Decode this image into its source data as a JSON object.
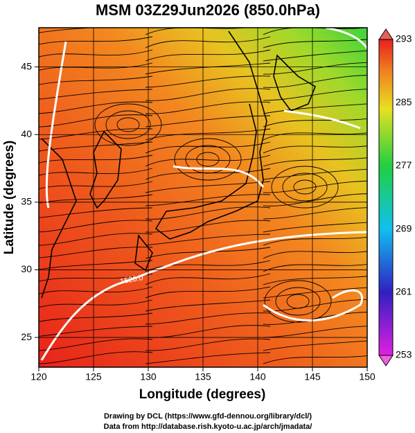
{
  "title": "MSM 03Z29Jun2026 (850.0hPa)",
  "x_axis": {
    "label": "Longitude (degrees)",
    "lim": [
      120,
      150
    ],
    "ticks": [
      120,
      125,
      130,
      135,
      140,
      145,
      150
    ]
  },
  "y_axis": {
    "label": "Latitude  (degrees)",
    "lim": [
      22.8,
      47.9
    ],
    "ticks": [
      25,
      30,
      35,
      40,
      45
    ]
  },
  "colorbar": {
    "lim": [
      253,
      293
    ],
    "ticks": [
      293,
      285,
      277,
      269,
      261,
      253
    ]
  },
  "contour_labels": [
    "1520.0"
  ],
  "credits": [
    "Drawing by DCL (https://www.gfd-dennou.org/library/dcl/)",
    "Data from http://database.rish.kyoto-u.ac.jp/arch/jmadata/"
  ]
}
